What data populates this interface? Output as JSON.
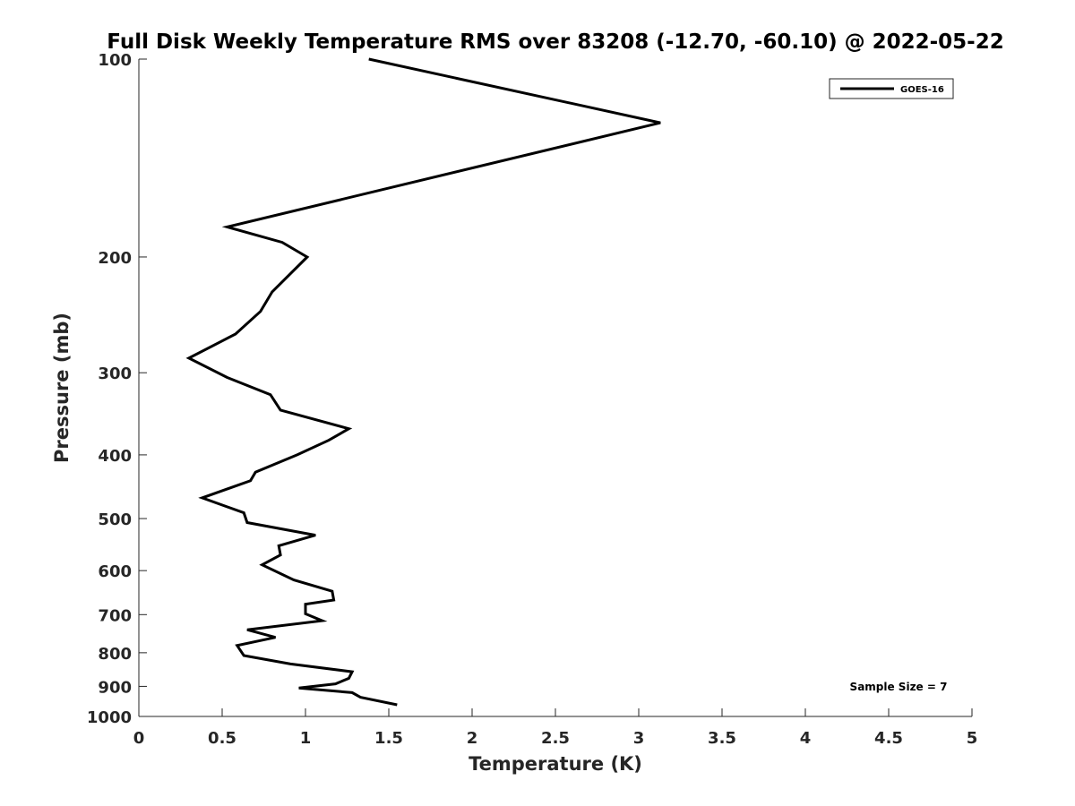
{
  "chart_data": {
    "type": "line",
    "title": "Full Disk Weekly Temperature RMS over 83208 (-12.70, -60.10) @ 2022-05-22",
    "xlabel": "Temperature (K)",
    "ylabel": "Pressure (mb)",
    "xlim": [
      0,
      5
    ],
    "ylim": [
      1000,
      100
    ],
    "yscale": "log",
    "grid": false,
    "legend_position": "top-right",
    "x_ticks": [
      "0",
      "0.5",
      "1",
      "1.5",
      "2",
      "2.5",
      "3",
      "3.5",
      "4",
      "4.5",
      "5"
    ],
    "y_ticks": [
      "100",
      "200",
      "300",
      "400",
      "500",
      "600",
      "700",
      "800",
      "900",
      "1000"
    ],
    "series": [
      {
        "name": "GOES-16",
        "color": "#000000",
        "points": [
          [
            1.38,
            100
          ],
          [
            3.13,
            125
          ],
          [
            0.53,
            180
          ],
          [
            0.86,
            190
          ],
          [
            1.01,
            200
          ],
          [
            0.8,
            226
          ],
          [
            0.73,
            242
          ],
          [
            0.58,
            262
          ],
          [
            0.3,
            285
          ],
          [
            0.53,
            305
          ],
          [
            0.79,
            324
          ],
          [
            0.85,
            342
          ],
          [
            1.26,
            365
          ],
          [
            1.14,
            380
          ],
          [
            0.95,
            400
          ],
          [
            0.7,
            425
          ],
          [
            0.67,
            438
          ],
          [
            0.38,
            465
          ],
          [
            0.63,
            490
          ],
          [
            0.65,
            507
          ],
          [
            1.06,
            530
          ],
          [
            0.84,
            550
          ],
          [
            0.85,
            568
          ],
          [
            0.74,
            588
          ],
          [
            0.93,
            620
          ],
          [
            1.16,
            645
          ],
          [
            1.17,
            665
          ],
          [
            1.0,
            675
          ],
          [
            1.0,
            698
          ],
          [
            1.1,
            715
          ],
          [
            0.65,
            738
          ],
          [
            0.82,
            758
          ],
          [
            0.59,
            780
          ],
          [
            0.63,
            808
          ],
          [
            0.91,
            832
          ],
          [
            1.28,
            855
          ],
          [
            1.26,
            875
          ],
          [
            1.18,
            892
          ],
          [
            0.96,
            905
          ],
          [
            1.28,
            920
          ],
          [
            1.33,
            935
          ],
          [
            1.55,
            960
          ]
        ]
      }
    ],
    "annotation": "Sample Size = 7"
  }
}
